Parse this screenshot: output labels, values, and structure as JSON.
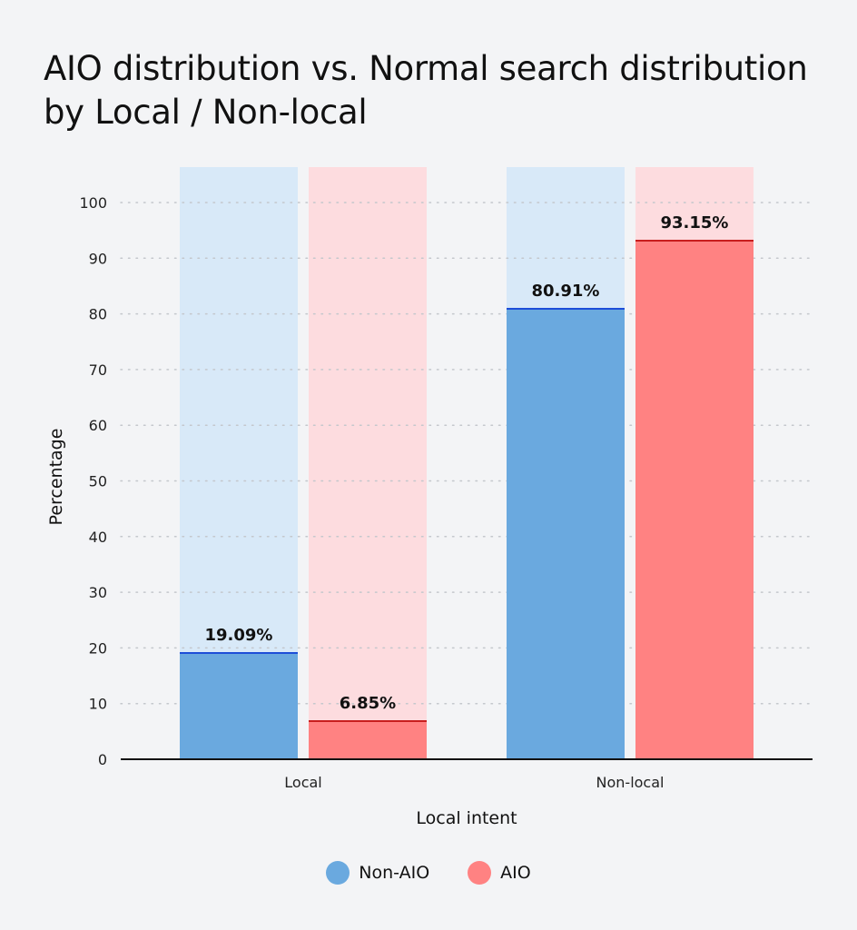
{
  "chart_data": {
    "type": "bar",
    "title": "AIO distribution vs. Normal search distribution by Local / Non-local",
    "xlabel": "Local intent",
    "ylabel": "Percentage",
    "categories": [
      "Local",
      "Non-local"
    ],
    "ylim": [
      0,
      100
    ],
    "yticks": [
      0,
      10,
      20,
      30,
      40,
      50,
      60,
      70,
      80,
      90,
      100
    ],
    "grid": true,
    "legend_position": "bottom",
    "series": [
      {
        "name": "Non-AIO",
        "values": [
          19.09,
          80.91
        ],
        "labels": [
          "19.09%",
          "80.91%"
        ],
        "color": "#6aa9df",
        "line_color": "#1d4ed8",
        "background_color": "#d8e9f8"
      },
      {
        "name": "AIO",
        "values": [
          6.85,
          93.15
        ],
        "labels": [
          "6.85%",
          "93.15%"
        ],
        "color": "#ff8282",
        "line_color": "#c81e1e",
        "background_color": "#fddcdf"
      }
    ]
  }
}
